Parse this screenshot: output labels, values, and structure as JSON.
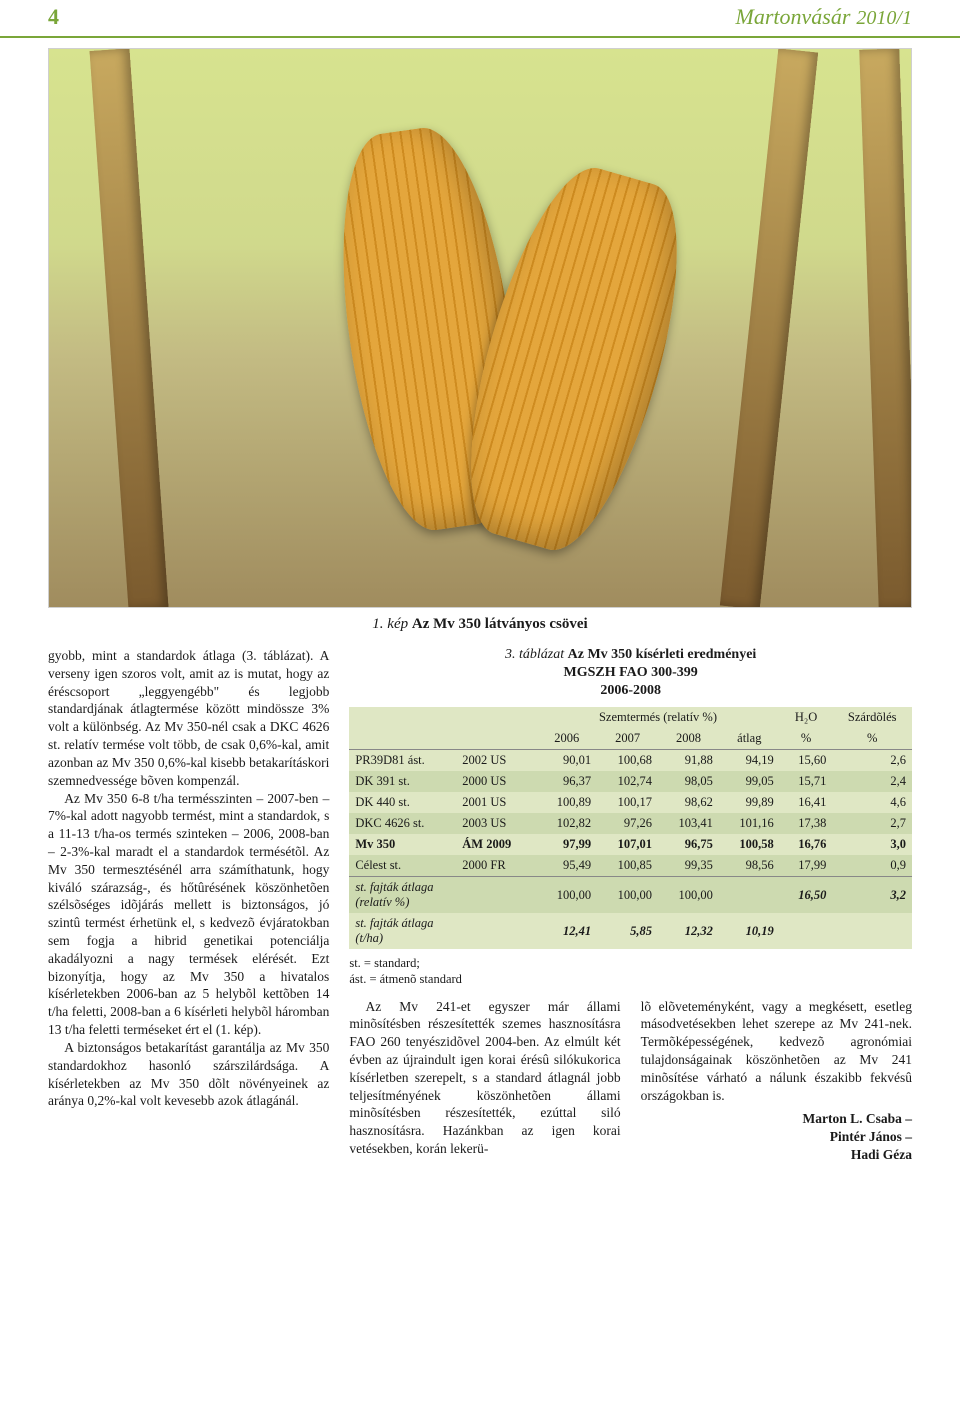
{
  "header": {
    "page_number": "4",
    "masthead": "Martonvásár",
    "issue": "2010/1"
  },
  "hero": {
    "caption_lead": "1. kép ",
    "caption_rest": "Az Mv 350 látványos csövei"
  },
  "text": {
    "col1_p1": "gyobb, mint a standardok átlaga (3. táblázat). A verseny igen szoros volt, amit az is mutat, hogy az éréscsoport „leggyengébb\" és legjobb standardjának átlagtermése között mindössze 3% volt a különbség. Az Mv 350-nél csak a DKC 4626 st. relatív termése volt több, de csak 0,6%-kal, amit azonban az Mv 350 0,6%-kal kisebb betakarításkori szemnedvessége bõven kompenzál.",
    "col1_p2": "Az Mv 350 6-8 t/ha termésszinten – 2007-ben – 7%-kal adott nagyobb termést, mint a standardok, s a 11-13 t/ha-os termés szinteken – 2006, 2008-ban – 2-3%-kal maradt el a standardok termésétõl. Az Mv 350 termesztésénél arra számíthatunk, hogy kiváló szárazság-, és hőtûrésének köszönhetõen szélsõséges idõjárás mellett is biztonságos, jó szintû termést érhetünk el, s kedvezõ évjáratokban sem fogja a hibrid genetikai potenciálja akadályozni a nagy termések elérését. Ezt bizonyítja, hogy az Mv 350 a hivatalos kísérletekben 2006-ban az 5 helybõl kettõben 14 t/ha feletti, 2008-ban a 6 kísérleti helybõl háromban 13 t/ha feletti terméseket ért el (1. kép).",
    "col1_p3": "A biztonságos betakarítást garantálja az Mv 350 standardokhoz hasonló szárszilárdsága. A kísérletekben az Mv 350 dõlt növényeinek az aránya 0,2%-kal volt kevesebb azok átlagánál.",
    "col2_p1": "Az Mv 241-et egyszer már állami minõsítésben részesítették szemes hasznosításra FAO 260 tenyészidõvel 2004-ben. Az elmúlt két évben az újraindult igen korai érésû silókukorica kísérletben szerepelt, s a standard átlagnál jobb teljesítményének köszönhetõen állami minõsítésben részesítették, ezúttal siló hasznosításra. Hazánkban az igen korai vetésekben, korán lekerü-",
    "col3_p1": "lõ elõveteményként, vagy a megkésett, esetleg másodvetésekben lehet szerepe az Mv 241-nek. Termõképességének, kedvezõ agronómiai tulajdonságainak köszönhetõen az Mv 241 minõsítése várható a nálunk északibb fekvésû országokban is.",
    "authors": [
      "Marton L. Csaba –",
      "Pintér János –",
      "Hadi Géza"
    ]
  },
  "table": {
    "caption_lead": "3. táblázat ",
    "caption_strong": "Az Mv 350 kísérleti eredményei",
    "subtitle": "MGSZH FAO 300-399",
    "years": "2006-2008",
    "head_group": "Szemtermés (relatív %)",
    "head_h2o": "H₂O",
    "head_szardoles": "Szárdõlés",
    "cols": [
      "",
      "",
      "2006",
      "2007",
      "2008",
      "átlag",
      "%",
      "%"
    ],
    "rows": [
      {
        "name": "PR39D81 ást.",
        "code": "2002 US",
        "vals": [
          "90,01",
          "100,68",
          "91,88",
          "94,19",
          "15,60",
          "2,6"
        ],
        "bold": false
      },
      {
        "name": "DK 391 st.",
        "code": "2000 US",
        "vals": [
          "96,37",
          "102,74",
          "98,05",
          "99,05",
          "15,71",
          "2,4"
        ],
        "bold": false
      },
      {
        "name": "DK 440 st.",
        "code": "2001 US",
        "vals": [
          "100,89",
          "100,17",
          "98,62",
          "99,89",
          "16,41",
          "4,6"
        ],
        "bold": false
      },
      {
        "name": "DKC 4626 st.",
        "code": "2003 US",
        "vals": [
          "102,82",
          "97,26",
          "103,41",
          "101,16",
          "17,38",
          "2,7"
        ],
        "bold": false
      },
      {
        "name": "Mv 350",
        "code": "ÁM 2009",
        "vals": [
          "97,99",
          "107,01",
          "96,75",
          "100,58",
          "16,76",
          "3,0"
        ],
        "bold": true
      },
      {
        "name": "Célest st.",
        "code": "2000 FR",
        "vals": [
          "95,49",
          "100,85",
          "99,35",
          "98,56",
          "17,99",
          "0,9"
        ],
        "bold": false
      }
    ],
    "footer1_label": "st. fajták átlaga",
    "footer1_sublabel": "(relatív %)",
    "footer1_vals": [
      "100,00",
      "100,00",
      "100,00",
      "",
      "16,50",
      "3,2"
    ],
    "footer2_label": "st. fajták átlaga",
    "footer2_sublabel": "(t/ha)",
    "footer2_vals": [
      "12,41",
      "5,85",
      "12,32",
      "10,19",
      "",
      ""
    ],
    "legend1": "st. = standard;",
    "legend2": "ást. = átmenõ standard",
    "colors": {
      "bg": "#dfe7c4",
      "alt": "#cddab0",
      "rule": "#7aa639"
    }
  }
}
